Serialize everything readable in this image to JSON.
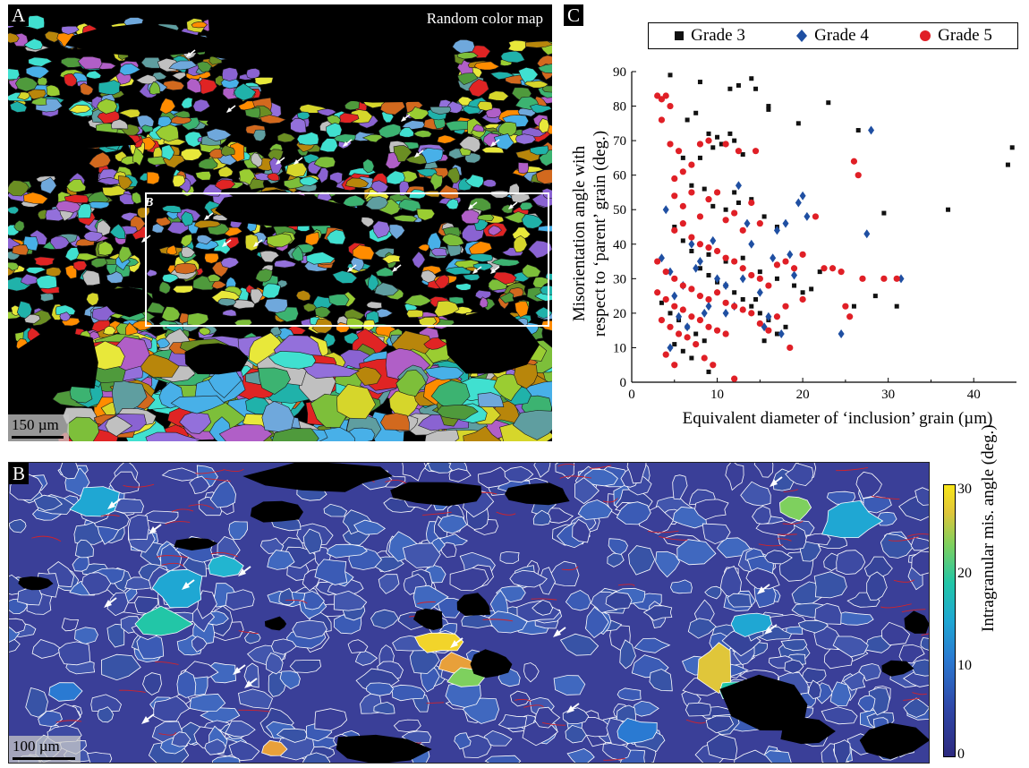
{
  "panel_a": {
    "letter": "A",
    "title": "Random color map",
    "scale_label": "150 µm",
    "inset_label": "B"
  },
  "panel_b": {
    "letter": "B",
    "scale_label": "100 µm",
    "colorbar": {
      "title": "Intragranular mis. angle (deg.)",
      "ticks": [
        "0",
        "10",
        "20",
        "30"
      ]
    }
  },
  "panel_c": {
    "letter": "C"
  },
  "colors": {
    "grade3": "#111111",
    "grade4": "#1f4fa2",
    "grade5": "#e01f26",
    "ipf_blue": "#3a3f98",
    "grain_boundary": "#ffffff",
    "subgrain_boundary": "#d2232a"
  },
  "chart_data": {
    "type": "scatter",
    "title": "",
    "xlabel": "Equivalent diameter of ‘inclusion’ grain (µm)",
    "ylabel_line1": "Misorientation angle with",
    "ylabel_line2": "respect to ‘parent’ grain (deg.)",
    "xlim": [
      0,
      45
    ],
    "ylim": [
      0,
      90
    ],
    "xticks": [
      "0",
      "10",
      "20",
      "30",
      "40"
    ],
    "yticks": [
      "0",
      "10",
      "20",
      "30",
      "40",
      "50",
      "60",
      "70",
      "80",
      "90"
    ],
    "legend_position": "top",
    "series": [
      {
        "name": "Grade 3",
        "marker": "square",
        "points": [
          [
            4.5,
            89
          ],
          [
            8,
            87
          ],
          [
            11.5,
            85
          ],
          [
            12.5,
            86
          ],
          [
            14,
            88
          ],
          [
            14.5,
            85
          ],
          [
            16,
            80
          ],
          [
            16,
            79
          ],
          [
            19.5,
            75
          ],
          [
            23,
            81
          ],
          [
            7.5,
            78
          ],
          [
            6.5,
            76
          ],
          [
            9,
            72
          ],
          [
            10,
            71
          ],
          [
            11.5,
            72
          ],
          [
            12,
            70
          ],
          [
            8,
            65
          ],
          [
            9.5,
            68
          ],
          [
            10.5,
            69
          ],
          [
            13,
            66
          ],
          [
            6,
            65
          ],
          [
            7,
            57
          ],
          [
            8.5,
            56
          ],
          [
            10,
            55
          ],
          [
            12,
            55
          ],
          [
            9.5,
            51
          ],
          [
            11,
            50
          ],
          [
            12.5,
            52
          ],
          [
            14,
            53
          ],
          [
            15.5,
            48
          ],
          [
            17,
            45
          ],
          [
            5,
            45
          ],
          [
            6,
            41
          ],
          [
            7,
            38
          ],
          [
            9,
            37
          ],
          [
            11,
            35
          ],
          [
            13,
            36
          ],
          [
            15,
            32
          ],
          [
            17,
            30
          ],
          [
            19,
            28
          ],
          [
            20,
            26
          ],
          [
            21,
            27
          ],
          [
            22,
            32
          ],
          [
            8,
            33
          ],
          [
            9,
            31
          ],
          [
            10,
            29
          ],
          [
            11,
            28
          ],
          [
            12,
            26
          ],
          [
            13,
            24
          ],
          [
            14,
            22
          ],
          [
            15,
            20
          ],
          [
            16,
            18
          ],
          [
            3.5,
            23
          ],
          [
            4.5,
            20
          ],
          [
            5.5,
            18
          ],
          [
            6.5,
            16
          ],
          [
            7.5,
            14
          ],
          [
            8.5,
            12
          ],
          [
            5,
            11
          ],
          [
            6,
            9
          ],
          [
            7,
            7
          ],
          [
            9,
            3
          ],
          [
            14.5,
            24
          ],
          [
            15.5,
            12
          ],
          [
            17,
            14
          ],
          [
            18,
            16
          ],
          [
            26.5,
            73
          ],
          [
            26,
            22
          ],
          [
            28.5,
            25
          ],
          [
            29.5,
            49
          ],
          [
            31,
            22
          ],
          [
            37,
            50
          ],
          [
            44,
            63
          ],
          [
            44.5,
            68
          ]
        ]
      },
      {
        "name": "Grade 4",
        "marker": "diamond",
        "points": [
          [
            3.5,
            36
          ],
          [
            4,
            50
          ],
          [
            4.5,
            10
          ],
          [
            4.5,
            32
          ],
          [
            5,
            25
          ],
          [
            5.5,
            19
          ],
          [
            6.5,
            16
          ],
          [
            7,
            40
          ],
          [
            8,
            35
          ],
          [
            8.5,
            20
          ],
          [
            9,
            22
          ],
          [
            9.5,
            41
          ],
          [
            10,
            30
          ],
          [
            11,
            28
          ],
          [
            12,
            22
          ],
          [
            12.5,
            57
          ],
          [
            13,
            30
          ],
          [
            14,
            40
          ],
          [
            15,
            26
          ],
          [
            15.5,
            16
          ],
          [
            16,
            19
          ],
          [
            16.5,
            36
          ],
          [
            17,
            44
          ],
          [
            18,
            46
          ],
          [
            18.5,
            37
          ],
          [
            19,
            31
          ],
          [
            19.5,
            52
          ],
          [
            20,
            54
          ],
          [
            20.5,
            48
          ],
          [
            17.5,
            14
          ],
          [
            24.5,
            14
          ],
          [
            27.5,
            43
          ],
          [
            28,
            73
          ],
          [
            31.5,
            30
          ],
          [
            11,
            20
          ],
          [
            13.5,
            46
          ],
          [
            6,
            28
          ],
          [
            7.5,
            33
          ]
        ]
      },
      {
        "name": "Grade 5",
        "marker": "circle",
        "points": [
          [
            3,
            83
          ],
          [
            3.5,
            82
          ],
          [
            4,
            83
          ],
          [
            4.5,
            80
          ],
          [
            3.5,
            76
          ],
          [
            4.5,
            69
          ],
          [
            5.5,
            67
          ],
          [
            5,
            59
          ],
          [
            6,
            61
          ],
          [
            7,
            63
          ],
          [
            8,
            69
          ],
          [
            9,
            70
          ],
          [
            11,
            69
          ],
          [
            12.5,
            67
          ],
          [
            14.5,
            67
          ],
          [
            5,
            54
          ],
          [
            6,
            51
          ],
          [
            7,
            55
          ],
          [
            8,
            48
          ],
          [
            9,
            53
          ],
          [
            10,
            55
          ],
          [
            11,
            47
          ],
          [
            12,
            49
          ],
          [
            13,
            44
          ],
          [
            14,
            52
          ],
          [
            15,
            46
          ],
          [
            5,
            44
          ],
          [
            6,
            46
          ],
          [
            7,
            42
          ],
          [
            8,
            40
          ],
          [
            9,
            39
          ],
          [
            10,
            38
          ],
          [
            11,
            36
          ],
          [
            12,
            35
          ],
          [
            13,
            33
          ],
          [
            14,
            31
          ],
          [
            15,
            30
          ],
          [
            16,
            28
          ],
          [
            17,
            34
          ],
          [
            18,
            35
          ],
          [
            19,
            33
          ],
          [
            20,
            37
          ],
          [
            3,
            35
          ],
          [
            4,
            32
          ],
          [
            5,
            30
          ],
          [
            6,
            28
          ],
          [
            7,
            27
          ],
          [
            8,
            25
          ],
          [
            9,
            24
          ],
          [
            10,
            26
          ],
          [
            11,
            23
          ],
          [
            12,
            22
          ],
          [
            13,
            21
          ],
          [
            14,
            20
          ],
          [
            15,
            17
          ],
          [
            16,
            15
          ],
          [
            17,
            19
          ],
          [
            18,
            22
          ],
          [
            3,
            26
          ],
          [
            4,
            24
          ],
          [
            5,
            22
          ],
          [
            6,
            21
          ],
          [
            7,
            19
          ],
          [
            8,
            18
          ],
          [
            9,
            16
          ],
          [
            10,
            15
          ],
          [
            11,
            14
          ],
          [
            3.5,
            18
          ],
          [
            4.5,
            16
          ],
          [
            5.5,
            14
          ],
          [
            6.5,
            13
          ],
          [
            7.5,
            11
          ],
          [
            4,
            8
          ],
          [
            5,
            5
          ],
          [
            8.5,
            7
          ],
          [
            9.5,
            5
          ],
          [
            12,
            1
          ],
          [
            18.5,
            10
          ],
          [
            20,
            24
          ],
          [
            21.5,
            48
          ],
          [
            22.5,
            33
          ],
          [
            23.5,
            33
          ],
          [
            24.5,
            32
          ],
          [
            25,
            22
          ],
          [
            25.5,
            19
          ],
          [
            26,
            64
          ],
          [
            26.5,
            60
          ],
          [
            27,
            30
          ],
          [
            29.5,
            30
          ],
          [
            31,
            30
          ]
        ]
      }
    ]
  }
}
